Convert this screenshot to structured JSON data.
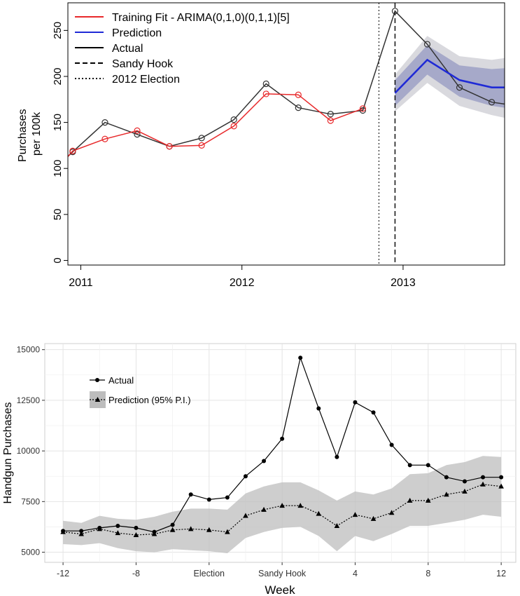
{
  "chart_data": [
    {
      "type": "line",
      "title": "",
      "xlabel": "",
      "ylabel": "Purchases\nper 100k",
      "ylabel_lines": [
        "Purchases",
        "per 100k"
      ],
      "xlim": [
        2010.92,
        2013.63
      ],
      "ylim": [
        -5,
        280
      ],
      "x_ticks": [
        {
          "value": 2011,
          "label": "2011"
        },
        {
          "value": 2012,
          "label": "2012"
        },
        {
          "value": 2013,
          "label": "2013"
        }
      ],
      "y_ticks": [
        0,
        50,
        100,
        150,
        200,
        250
      ],
      "grid": false,
      "legend_position": "top-left",
      "legend": [
        {
          "label": "Training Fit - ARIMA(0,1,0)(0,1,1)[5]",
          "color": "#e8292b",
          "style": "solid"
        },
        {
          "label": "Prediction",
          "color": "#1f2ad6",
          "style": "solid"
        },
        {
          "label": "Actual",
          "color": "#000000",
          "style": "solid"
        },
        {
          "label": "Sandy Hook",
          "color": "#000000",
          "style": "dashed"
        },
        {
          "label": "2012 Election",
          "color": "#000000",
          "style": "dotted"
        }
      ],
      "vlines": [
        {
          "x": 2012.85,
          "style": "dotted",
          "label": "2012 Election"
        },
        {
          "x": 2012.95,
          "style": "dashed",
          "label": "Sandy Hook"
        }
      ],
      "series": [
        {
          "name": "Actual",
          "color": "#333333",
          "x": [
            2010.92,
            2010.95,
            2011.15,
            2011.35,
            2011.55,
            2011.75,
            2011.95,
            2012.15,
            2012.35,
            2012.55,
            2012.75,
            2012.95,
            2013.15,
            2013.35,
            2013.55,
            2013.63
          ],
          "y": [
            113,
            118,
            150,
            137,
            124,
            133,
            153,
            192,
            166,
            159,
            163,
            271,
            235,
            188,
            172,
            170
          ]
        },
        {
          "name": "Training Fit - ARIMA(0,1,0)(0,1,1)[5]",
          "color": "#e8292b",
          "x": [
            2010.92,
            2010.95,
            2011.15,
            2011.35,
            2011.55,
            2011.75,
            2011.95,
            2012.15,
            2012.35,
            2012.55,
            2012.75
          ],
          "y": [
            113,
            119,
            132,
            141,
            124,
            125,
            146,
            181,
            180,
            152,
            165
          ]
        },
        {
          "name": "Prediction",
          "color": "#1f2ad6",
          "x": [
            2012.95,
            2013.15,
            2013.35,
            2013.55,
            2013.63
          ],
          "y": [
            182,
            218,
            196,
            188,
            188
          ],
          "lower80": [
            168,
            202,
            178,
            168,
            166
          ],
          "upper80": [
            196,
            234,
            212,
            208,
            209
          ],
          "lower95": [
            162,
            193,
            168,
            158,
            155
          ],
          "upper95": [
            202,
            244,
            222,
            218,
            220
          ]
        }
      ]
    },
    {
      "type": "line",
      "title": "",
      "xlabel": "Week",
      "ylabel": "Handgun Purchases",
      "xlim": [
        -13,
        12.8
      ],
      "ylim": [
        4500,
        15300
      ],
      "x_ticks": [
        {
          "value": -12,
          "label": "-12"
        },
        {
          "value": -8,
          "label": "-8"
        },
        {
          "value": -4,
          "label": "Election"
        },
        {
          "value": 0,
          "label": "Sandy Hook"
        },
        {
          "value": 4,
          "label": "4"
        },
        {
          "value": 8,
          "label": "8"
        },
        {
          "value": 12,
          "label": "12"
        }
      ],
      "y_ticks": [
        5000,
        7500,
        10000,
        12500,
        15000
      ],
      "y_tick_labels": [
        "5000",
        "7500",
        "10000",
        "12500",
        "15000"
      ],
      "grid": true,
      "legend_position": "top-left",
      "legend": [
        {
          "label": "Actual",
          "style": "solid",
          "marker": "circle"
        },
        {
          "label": "Prediction (95% P.I.)",
          "style": "dotted",
          "marker": "triangle"
        }
      ],
      "x": [
        -12,
        -11,
        -10,
        -9,
        -8,
        -7,
        -6,
        -5,
        -4,
        -3,
        -2,
        -1,
        0,
        1,
        2,
        3,
        4,
        5,
        6,
        7,
        8,
        9,
        10,
        11,
        12
      ],
      "series": [
        {
          "name": "Actual",
          "marker": "circle",
          "values": [
            6050,
            6050,
            6200,
            6300,
            6200,
            6000,
            6350,
            7850,
            7600,
            7700,
            8750,
            9500,
            10600,
            14600,
            12100,
            9700,
            12400,
            11900,
            10300,
            9300,
            9300,
            8700,
            8500,
            8700,
            8700
          ]
        },
        {
          "name": "Prediction (95% P.I.)",
          "marker": "triangle",
          "values": [
            6000,
            5900,
            6150,
            5950,
            5850,
            5900,
            6100,
            6150,
            6100,
            6000,
            6800,
            7100,
            7300,
            7300,
            6900,
            6300,
            6850,
            6650,
            6950,
            7550,
            7550,
            7850,
            8000,
            8350,
            8250
          ],
          "lower": [
            5400,
            5350,
            5450,
            5200,
            5050,
            5000,
            5150,
            5100,
            5050,
            4950,
            5700,
            6000,
            6200,
            6250,
            5800,
            5050,
            5800,
            5550,
            5900,
            6300,
            6300,
            6450,
            6600,
            6850,
            6750
          ],
          "upper": [
            6550,
            6450,
            6800,
            6650,
            6600,
            6750,
            7000,
            7150,
            7150,
            7100,
            7900,
            8250,
            8450,
            8450,
            8050,
            7550,
            8000,
            7850,
            8150,
            8850,
            8900,
            9300,
            9450,
            9750,
            9700
          ]
        }
      ]
    }
  ]
}
